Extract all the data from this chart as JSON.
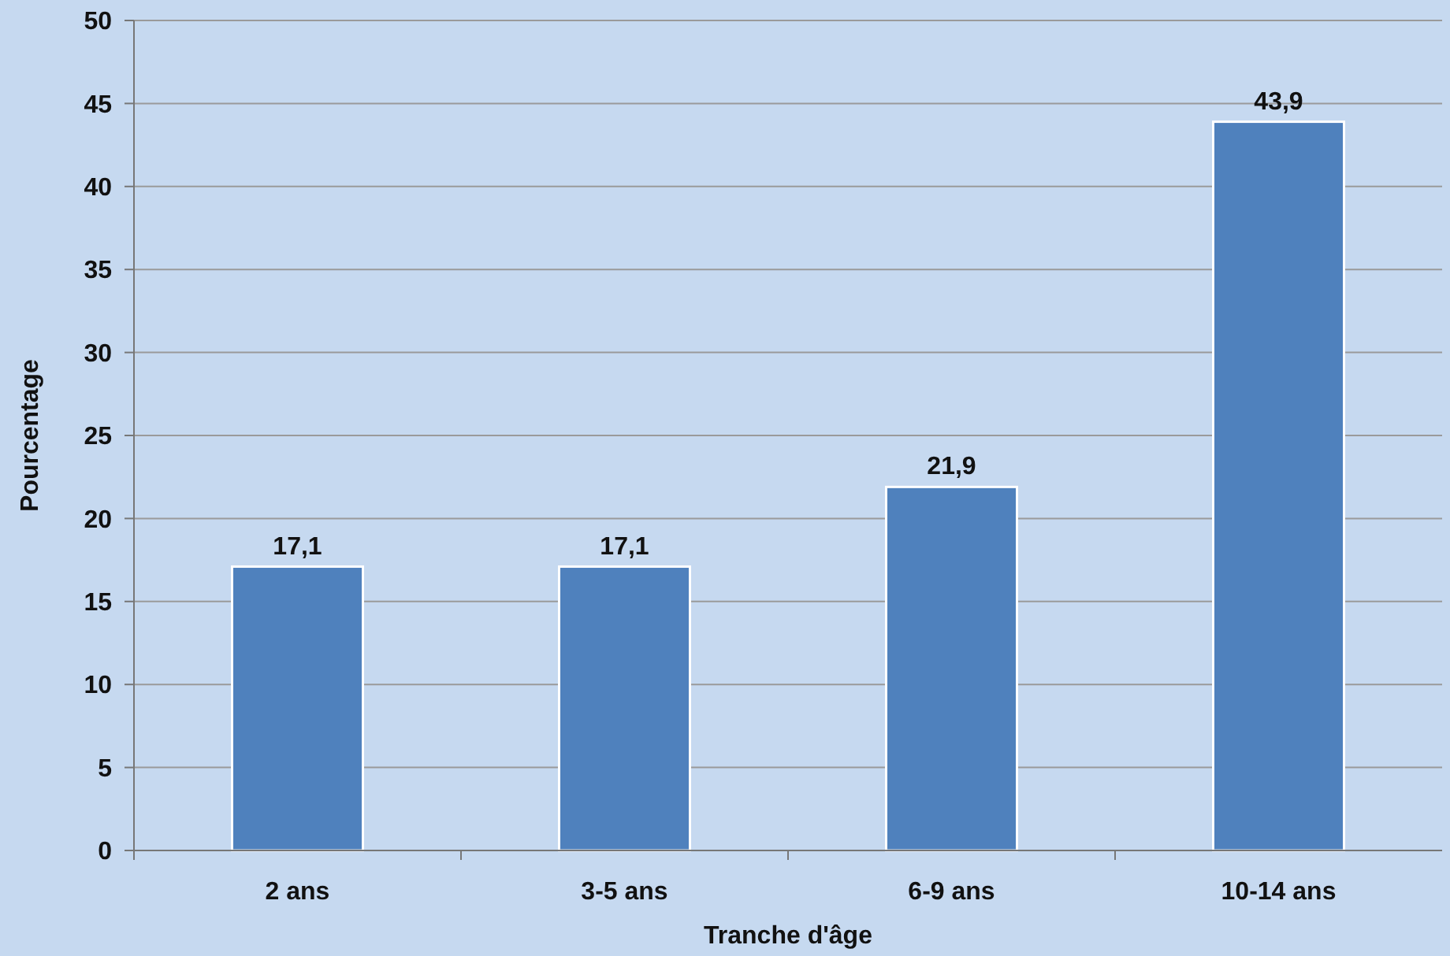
{
  "chart_data": {
    "type": "bar",
    "xlabel": "Tranche d'âge",
    "ylabel": "Pourcentage",
    "categories": [
      "2 ans",
      "3-5 ans",
      "6-9 ans",
      "10-14 ans"
    ],
    "values": [
      17.1,
      17.1,
      21.9,
      43.9
    ],
    "value_labels": [
      "17,1",
      "17,1",
      "21,9",
      "43,9"
    ],
    "color": "#4f81bd",
    "ylim": [
      0,
      50
    ],
    "yticks": [
      0,
      5,
      10,
      15,
      20,
      25,
      30,
      35,
      40,
      45,
      50
    ],
    "grid": "y"
  }
}
